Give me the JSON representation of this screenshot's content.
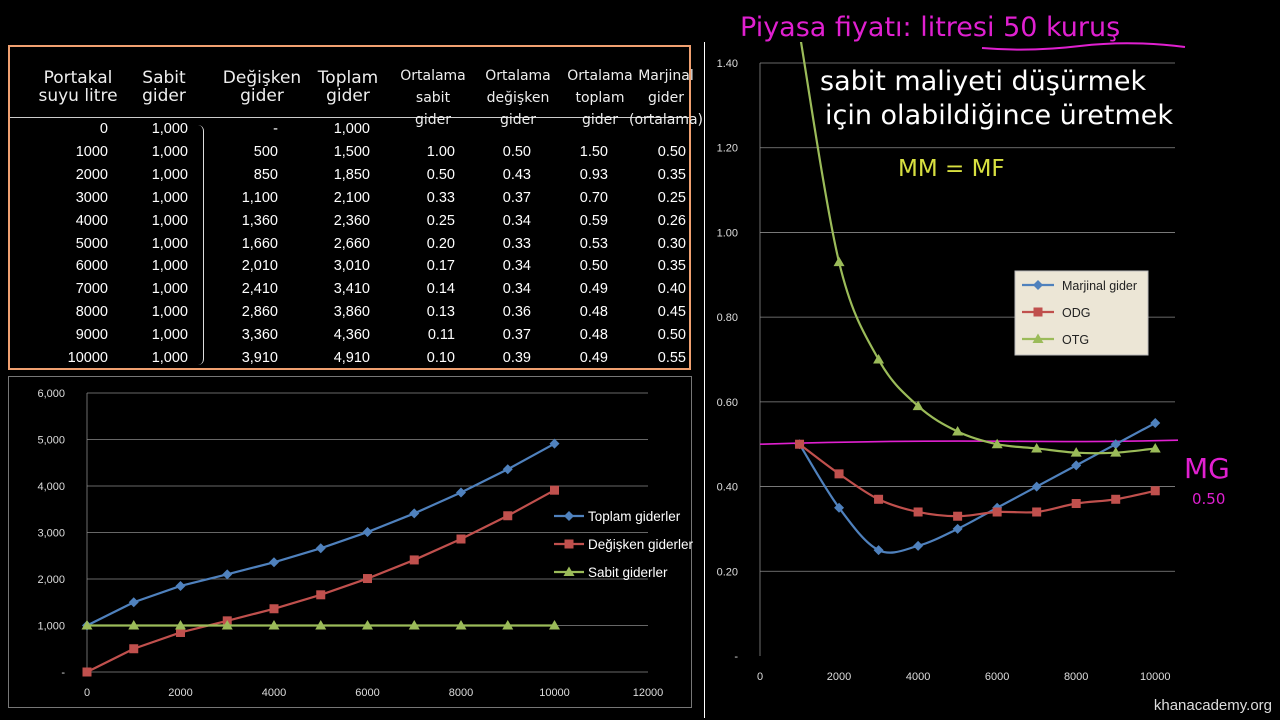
{
  "table": {
    "headers": [
      "Portakal\nsuyu litre",
      "Sabit\ngider",
      "Değişken\ngider",
      "Toplam\ngider",
      "Ortalama\nsabit\ngider",
      "Ortalama\ndeğişken\ngider",
      "Ortalama\ntoplam\ngider",
      "Marjinal\ngider\n(ortalama)"
    ],
    "rows": [
      [
        "0",
        "1,000",
        "-",
        "1,000",
        "",
        "",
        "",
        ""
      ],
      [
        "1000",
        "1,000",
        "500",
        "1,500",
        "1.00",
        "0.50",
        "1.50",
        "0.50"
      ],
      [
        "2000",
        "1,000",
        "850",
        "1,850",
        "0.50",
        "0.43",
        "0.93",
        "0.35"
      ],
      [
        "3000",
        "1,000",
        "1,100",
        "2,100",
        "0.33",
        "0.37",
        "0.70",
        "0.25"
      ],
      [
        "4000",
        "1,000",
        "1,360",
        "2,360",
        "0.25",
        "0.34",
        "0.59",
        "0.26"
      ],
      [
        "5000",
        "1,000",
        "1,660",
        "2,660",
        "0.20",
        "0.33",
        "0.53",
        "0.30"
      ],
      [
        "6000",
        "1,000",
        "2,010",
        "3,010",
        "0.17",
        "0.34",
        "0.50",
        "0.35"
      ],
      [
        "7000",
        "1,000",
        "2,410",
        "3,410",
        "0.14",
        "0.34",
        "0.49",
        "0.40"
      ],
      [
        "8000",
        "1,000",
        "2,860",
        "3,860",
        "0.13",
        "0.36",
        "0.48",
        "0.45"
      ],
      [
        "9000",
        "1,000",
        "3,360",
        "4,360",
        "0.11",
        "0.37",
        "0.48",
        "0.50"
      ],
      [
        "10000",
        "1,000",
        "3,910",
        "4,910",
        "0.10",
        "0.39",
        "0.49",
        "0.55"
      ]
    ]
  },
  "annotations": {
    "price": "Piyasa fiyatı: litresi 50 kuruş",
    "note_line1": "sabit maliyeti düşürmek",
    "note_line2": "için olabildiğince üretmek",
    "mm_mf": "MM = MF",
    "mg_label": "MG",
    "mg_value": "0.50"
  },
  "watermark": "khanacademy.org",
  "colors": {
    "blue": "#4f81bd",
    "red": "#c0504d",
    "green": "#9bbb59",
    "magenta": "#e020d0",
    "yellow": "#d8e040",
    "table_border": "#f0a070"
  },
  "chart_data": [
    {
      "type": "line",
      "x": [
        0,
        1000,
        2000,
        3000,
        4000,
        5000,
        6000,
        7000,
        8000,
        9000,
        10000
      ],
      "series": [
        {
          "name": "Toplam giderler",
          "marker": "diamond",
          "color": "#4f81bd",
          "values": [
            1000,
            1500,
            1850,
            2100,
            2360,
            2660,
            3010,
            3410,
            3860,
            4360,
            4910
          ]
        },
        {
          "name": "Değişken giderler",
          "marker": "square",
          "color": "#c0504d",
          "values": [
            0,
            500,
            850,
            1100,
            1360,
            1660,
            2010,
            2410,
            2860,
            3360,
            3910
          ]
        },
        {
          "name": "Sabit giderler",
          "marker": "triangle",
          "color": "#9bbb59",
          "values": [
            1000,
            1000,
            1000,
            1000,
            1000,
            1000,
            1000,
            1000,
            1000,
            1000,
            1000
          ]
        }
      ],
      "xlim": [
        0,
        12000
      ],
      "ylim": [
        0,
        6000
      ],
      "x_ticks": [
        "0",
        "2000",
        "4000",
        "6000",
        "8000",
        "10000",
        "12000"
      ],
      "y_ticks": [
        "-",
        "1,000",
        "2,000",
        "3,000",
        "4,000",
        "5,000",
        "6,000"
      ],
      "grid": true,
      "legend": "right"
    },
    {
      "type": "line",
      "x": [
        1000,
        2000,
        3000,
        4000,
        5000,
        6000,
        7000,
        8000,
        9000,
        10000
      ],
      "series": [
        {
          "name": "Marjinal gider",
          "marker": "diamond",
          "color": "#4f81bd",
          "values": [
            0.5,
            0.35,
            0.25,
            0.26,
            0.3,
            0.35,
            0.4,
            0.45,
            0.5,
            0.55
          ]
        },
        {
          "name": "ODG",
          "marker": "square",
          "color": "#c0504d",
          "values": [
            0.5,
            0.43,
            0.37,
            0.34,
            0.33,
            0.34,
            0.34,
            0.36,
            0.37,
            0.39
          ]
        },
        {
          "name": "OTG",
          "marker": "triangle",
          "color": "#9bbb59",
          "values": [
            1.5,
            0.93,
            0.7,
            0.59,
            0.53,
            0.5,
            0.49,
            0.48,
            0.48,
            0.49
          ]
        }
      ],
      "xlim": [
        0,
        10500
      ],
      "ylim": [
        0,
        1.45
      ],
      "x_ticks": [
        "0",
        "2000",
        "4000",
        "6000",
        "8000",
        "10000"
      ],
      "y_ticks": [
        "-",
        "0.20",
        "0.40",
        "0.60",
        "0.80",
        "1.00",
        "1.20",
        "1.40"
      ],
      "price_line": 0.5,
      "grid": true,
      "legend": "right"
    }
  ]
}
